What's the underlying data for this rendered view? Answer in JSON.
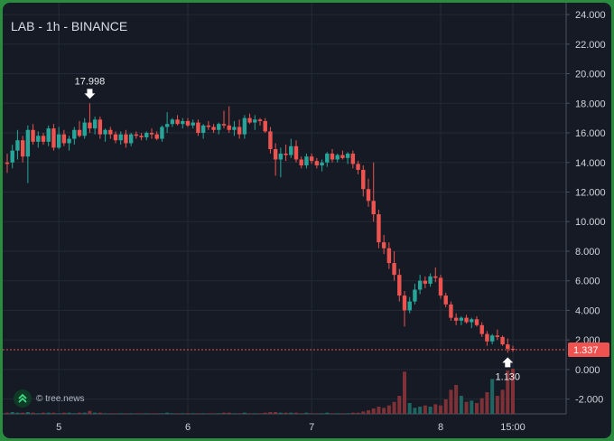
{
  "chart_title": "LAB - 1h - BINANCE",
  "brand": {
    "text": "© tree.news"
  },
  "colors": {
    "up": "#26a69a",
    "down": "#ef5350",
    "background": "#151a24",
    "grid": "#232a37",
    "axis_text": "#d0d4dc",
    "price_line": "#ef5350"
  },
  "chart_data": {
    "type": "candlestick",
    "title": "LAB - 1h - BINANCE",
    "x_ticks": [
      "5",
      "6",
      "7",
      "8",
      "15:00"
    ],
    "y_ticks": [
      "24.000",
      "22.000",
      "20.000",
      "18.000",
      "16.000",
      "14.000",
      "12.000",
      "10.000",
      "8.000",
      "6.000",
      "4.000",
      "2.000",
      "0.000",
      "-2.000"
    ],
    "ylim": [
      -3,
      24.8
    ],
    "grid": true,
    "last_price": {
      "value": 1.337,
      "label": "1.337"
    },
    "annotations": [
      {
        "label": "17.998",
        "value": 17.998,
        "marker": "high"
      },
      {
        "label": "1.130",
        "value": 1.13,
        "marker": "low"
      }
    ],
    "candles": [
      [
        14.0,
        14.6,
        13.3,
        13.9
      ],
      [
        14.0,
        15.2,
        13.6,
        14.8
      ],
      [
        14.8,
        16.2,
        14.2,
        15.5
      ],
      [
        15.5,
        15.8,
        14.0,
        14.4
      ],
      [
        14.4,
        16.5,
        12.6,
        16.2
      ],
      [
        16.2,
        16.6,
        15.2,
        15.4
      ],
      [
        15.4,
        16.1,
        15.0,
        15.8
      ],
      [
        15.8,
        16.0,
        15.2,
        15.4
      ],
      [
        15.4,
        16.5,
        15.1,
        16.3
      ],
      [
        16.3,
        16.6,
        14.8,
        15.0
      ],
      [
        15.0,
        16.4,
        14.9,
        15.9
      ],
      [
        15.9,
        16.2,
        15.1,
        15.3
      ],
      [
        15.3,
        15.8,
        14.8,
        15.6
      ],
      [
        15.6,
        16.4,
        15.2,
        16.2
      ],
      [
        16.2,
        16.8,
        15.7,
        15.8
      ],
      [
        15.8,
        17.0,
        15.6,
        16.7
      ],
      [
        16.7,
        17.998,
        16.0,
        16.3
      ],
      [
        16.3,
        17.1,
        15.9,
        16.9
      ],
      [
        16.9,
        17.1,
        15.6,
        15.9
      ],
      [
        15.9,
        16.3,
        15.4,
        16.2
      ],
      [
        16.2,
        16.4,
        15.6,
        15.9
      ],
      [
        15.9,
        16.1,
        15.3,
        15.5
      ],
      [
        15.5,
        16.1,
        15.2,
        15.9
      ],
      [
        15.9,
        16.2,
        15.0,
        15.3
      ],
      [
        15.3,
        16.0,
        15.1,
        15.9
      ],
      [
        15.9,
        16.1,
        15.6,
        15.8
      ],
      [
        15.8,
        16.0,
        15.5,
        15.7
      ],
      [
        15.7,
        16.1,
        15.5,
        16.0
      ],
      [
        16.0,
        16.3,
        15.6,
        15.9
      ],
      [
        15.9,
        16.1,
        15.5,
        15.6
      ],
      [
        15.6,
        16.5,
        15.4,
        16.4
      ],
      [
        16.4,
        17.4,
        16.0,
        16.6
      ],
      [
        16.6,
        17.0,
        16.4,
        16.9
      ],
      [
        16.9,
        17.2,
        16.5,
        16.6
      ],
      [
        16.6,
        17.0,
        16.3,
        16.8
      ],
      [
        16.8,
        17.0,
        16.4,
        16.5
      ],
      [
        16.5,
        16.9,
        16.3,
        16.7
      ],
      [
        16.7,
        16.9,
        15.8,
        16.0
      ],
      [
        16.0,
        16.6,
        15.6,
        16.5
      ],
      [
        16.5,
        16.8,
        16.2,
        16.4
      ],
      [
        16.4,
        16.6,
        16.0,
        16.2
      ],
      [
        16.2,
        16.7,
        15.9,
        16.6
      ],
      [
        16.6,
        17.5,
        16.3,
        16.5
      ],
      [
        16.5,
        17.8,
        16.0,
        16.2
      ],
      [
        16.2,
        16.8,
        15.8,
        16.4
      ],
      [
        16.4,
        16.9,
        15.6,
        15.9
      ],
      [
        15.9,
        17.2,
        15.6,
        17.0
      ],
      [
        17.0,
        17.3,
        16.6,
        16.7
      ],
      [
        16.7,
        17.2,
        16.2,
        16.9
      ],
      [
        16.9,
        17.0,
        16.5,
        16.8
      ],
      [
        16.8,
        17.0,
        16.0,
        16.1
      ],
      [
        16.1,
        16.4,
        14.6,
        14.9
      ],
      [
        14.9,
        15.3,
        13.1,
        14.2
      ],
      [
        14.2,
        15.0,
        13.0,
        14.6
      ],
      [
        14.6,
        15.2,
        14.1,
        14.5
      ],
      [
        14.5,
        15.6,
        14.3,
        15.1
      ],
      [
        15.1,
        15.5,
        14.0,
        14.2
      ],
      [
        14.2,
        14.4,
        13.6,
        13.8
      ],
      [
        13.8,
        14.6,
        13.6,
        14.4
      ],
      [
        14.4,
        14.6,
        13.9,
        14.1
      ],
      [
        14.1,
        14.3,
        13.6,
        13.8
      ],
      [
        13.8,
        14.2,
        13.4,
        14.0
      ],
      [
        14.0,
        14.7,
        13.7,
        14.6
      ],
      [
        14.6,
        14.9,
        14.0,
        14.2
      ],
      [
        14.2,
        14.6,
        14.0,
        14.5
      ],
      [
        14.5,
        14.8,
        14.2,
        14.3
      ],
      [
        14.3,
        14.7,
        13.9,
        14.6
      ],
      [
        14.6,
        14.8,
        13.6,
        13.9
      ],
      [
        13.9,
        14.1,
        13.2,
        13.5
      ],
      [
        13.5,
        13.8,
        11.7,
        12.2
      ],
      [
        12.2,
        12.9,
        11.0,
        11.4
      ],
      [
        11.4,
        14.0,
        10.0,
        10.5
      ],
      [
        10.5,
        10.8,
        8.2,
        8.6
      ],
      [
        8.6,
        9.1,
        7.8,
        8.2
      ],
      [
        8.2,
        8.6,
        6.8,
        7.2
      ],
      [
        7.2,
        8.0,
        6.0,
        6.4
      ],
      [
        6.4,
        6.8,
        4.6,
        5.0
      ],
      [
        5.0,
        5.3,
        2.9,
        4.0
      ],
      [
        4.0,
        4.9,
        3.8,
        4.6
      ],
      [
        4.6,
        5.8,
        4.4,
        5.4
      ],
      [
        5.4,
        6.4,
        5.1,
        6.0
      ],
      [
        6.0,
        6.3,
        5.5,
        5.8
      ],
      [
        5.8,
        6.5,
        5.6,
        6.3
      ],
      [
        6.3,
        6.9,
        5.9,
        6.2
      ],
      [
        6.2,
        6.4,
        4.8,
        5.0
      ],
      [
        5.0,
        5.2,
        4.2,
        4.4
      ],
      [
        4.4,
        4.6,
        3.3,
        3.5
      ],
      [
        3.5,
        3.8,
        3.0,
        3.3
      ],
      [
        3.3,
        3.6,
        3.0,
        3.5
      ],
      [
        3.5,
        3.7,
        3.1,
        3.2
      ],
      [
        3.2,
        3.5,
        2.8,
        3.4
      ],
      [
        3.4,
        3.6,
        2.9,
        3.0
      ],
      [
        3.0,
        3.2,
        2.2,
        2.4
      ],
      [
        2.4,
        2.6,
        1.6,
        1.9
      ],
      [
        1.9,
        2.4,
        1.7,
        2.3
      ],
      [
        2.3,
        2.7,
        2.0,
        2.2
      ],
      [
        2.2,
        2.3,
        1.6,
        1.7
      ],
      [
        1.7,
        2.1,
        1.13,
        1.4
      ],
      [
        1.4,
        1.6,
        1.2,
        1.337
      ]
    ],
    "volume": [
      2,
      3,
      2,
      2,
      3,
      2,
      1,
      2,
      2,
      2,
      1,
      2,
      2,
      1,
      2,
      2,
      5,
      2,
      2,
      1,
      1,
      1,
      1,
      1,
      1,
      1,
      1,
      1,
      1,
      1,
      1,
      2,
      1,
      1,
      1,
      1,
      1,
      1,
      1,
      1,
      1,
      1,
      2,
      2,
      1,
      1,
      2,
      1,
      1,
      1,
      2,
      3,
      3,
      2,
      2,
      2,
      2,
      1,
      2,
      1,
      1,
      1,
      2,
      1,
      1,
      1,
      1,
      2,
      2,
      4,
      6,
      9,
      12,
      10,
      14,
      20,
      30,
      70,
      18,
      10,
      12,
      14,
      12,
      16,
      14,
      24,
      40,
      48,
      30,
      20,
      22,
      18,
      26,
      36,
      58,
      30,
      40,
      72,
      75
    ]
  }
}
